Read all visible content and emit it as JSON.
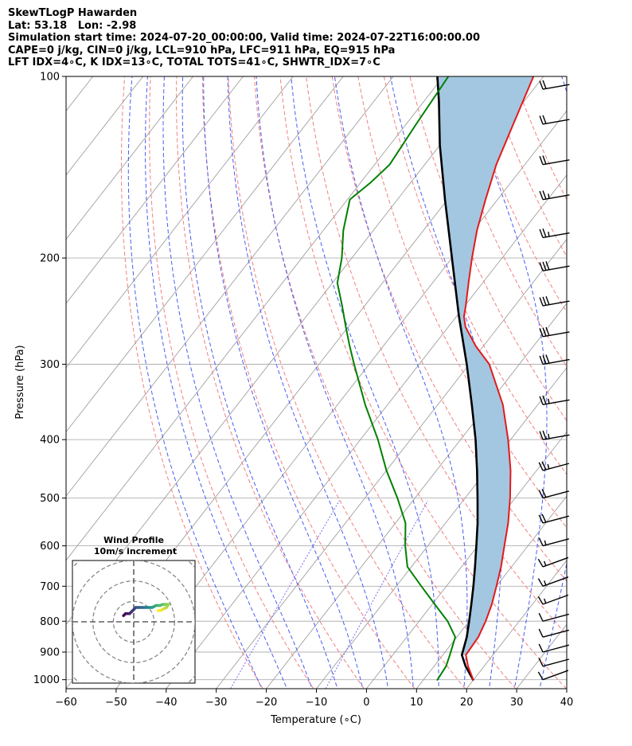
{
  "header": {
    "line1": "SkewTLogP Hawarden",
    "line2": "Lat: 53.18   Lon: -2.98",
    "line3": "Simulation start time: 2024-07-20_00:00:00, Valid time: 2024-07-22T16:00:00.00",
    "line4": "CAPE=0 j/kg, CIN=0 j/kg, LCL=910 hPa, LFC=911 hPa, EQ=915 hPa",
    "line5": "LFT IDX=4∘C, K IDX=13∘C, TOTAL TOTS=41∘C, SHWTR_IDX=7∘C"
  },
  "colors": {
    "temperature": "#e41a1c",
    "dewpoint": "#008000",
    "parcel": "#000000",
    "cape_fill": "#a3c7e0",
    "dry_adiabat": "#f08080",
    "moist_adiabat": "#4a5cf0",
    "mixing_ratio": "#7b68ee",
    "isotherm": "#a0a0a0",
    "isobar": "#b0b0b0"
  },
  "chart_data": {
    "type": "line",
    "xlabel": "Temperature (∘C)",
    "ylabel": "Pressure (hPa)",
    "xlim": [
      -60,
      40
    ],
    "ylim": [
      1035,
      100
    ],
    "yscale": "log",
    "skew": true,
    "x_ticks": [
      "−60",
      "−50",
      "−40",
      "−30",
      "−20",
      "−10",
      "0",
      "10",
      "20",
      "30",
      "40"
    ],
    "y_ticks": [
      "100",
      "200",
      "300",
      "400",
      "500",
      "600",
      "700",
      "800",
      "900",
      "1000"
    ],
    "grid": true,
    "series": [
      {
        "role": "temperature",
        "points": [
          [
            1003,
            20.1
          ],
          [
            950,
            16.8
          ],
          [
            910,
            14.6
          ],
          [
            850,
            14.3
          ],
          [
            800,
            13.3
          ],
          [
            750,
            11.9
          ],
          [
            700,
            10.0
          ],
          [
            650,
            7.9
          ],
          [
            600,
            5.3
          ],
          [
            550,
            2.5
          ],
          [
            500,
            -1.0
          ],
          [
            450,
            -5.2
          ],
          [
            400,
            -10.5
          ],
          [
            350,
            -17.0
          ],
          [
            300,
            -26.0
          ],
          [
            280,
            -31.5
          ],
          [
            260,
            -36.6
          ],
          [
            250,
            -38.5
          ],
          [
            240,
            -39.8
          ],
          [
            220,
            -42.8
          ],
          [
            200,
            -46.0
          ],
          [
            180,
            -49.3
          ],
          [
            160,
            -52.4
          ],
          [
            140,
            -55.7
          ],
          [
            120,
            -58.6
          ],
          [
            100,
            -62.0
          ]
        ]
      },
      {
        "role": "dewpoint",
        "points": [
          [
            1003,
            12.8
          ],
          [
            950,
            12.4
          ],
          [
            910,
            11.4
          ],
          [
            850,
            9.7
          ],
          [
            800,
            5.7
          ],
          [
            750,
            0.5
          ],
          [
            700,
            -5.0
          ],
          [
            650,
            -10.8
          ],
          [
            600,
            -14.5
          ],
          [
            550,
            -18.0
          ],
          [
            500,
            -23.5
          ],
          [
            450,
            -30.0
          ],
          [
            400,
            -36.5
          ],
          [
            350,
            -44.5
          ],
          [
            300,
            -53.0
          ],
          [
            280,
            -56.7
          ],
          [
            260,
            -60.5
          ],
          [
            240,
            -64.5
          ],
          [
            220,
            -69.0
          ],
          [
            200,
            -72.0
          ],
          [
            180,
            -76.0
          ],
          [
            160,
            -79.5
          ],
          [
            150,
            -78.0
          ],
          [
            140,
            -77.0
          ],
          [
            120,
            -78.0
          ],
          [
            100,
            -79.0
          ]
        ]
      },
      {
        "role": "parcel",
        "points": [
          [
            1003,
            20.1
          ],
          [
            950,
            16.3
          ],
          [
            910,
            13.8
          ],
          [
            850,
            12.0
          ],
          [
            800,
            10.0
          ],
          [
            750,
            7.8
          ],
          [
            700,
            5.4
          ],
          [
            650,
            2.7
          ],
          [
            600,
            -0.3
          ],
          [
            550,
            -3.6
          ],
          [
            500,
            -7.5
          ],
          [
            450,
            -11.9
          ],
          [
            400,
            -17.0
          ],
          [
            350,
            -23.2
          ],
          [
            300,
            -30.5
          ],
          [
            250,
            -39.5
          ],
          [
            200,
            -50.0
          ],
          [
            160,
            -60.5
          ],
          [
            130,
            -70.0
          ],
          [
            110,
            -77.0
          ],
          [
            100,
            -81.2
          ]
        ]
      }
    ],
    "dry_adiabats_theta_K": [
      250,
      260,
      270,
      280,
      290,
      300,
      310,
      320,
      330,
      340,
      350,
      360,
      370,
      380,
      390,
      400,
      420,
      440,
      460
    ],
    "moist_adiabats_start_C": [
      -20,
      -15,
      -10,
      -5,
      0,
      5,
      10,
      15,
      20,
      25,
      30,
      35
    ],
    "mixing_ratio_lines_gkg": [
      0.4,
      2
    ],
    "wind_barbs": [
      {
        "p": 1000,
        "spd_kt": 10,
        "dir": 250
      },
      {
        "p": 950,
        "spd_kt": 10,
        "dir": 255
      },
      {
        "p": 900,
        "spd_kt": 10,
        "dir": 255
      },
      {
        "p": 850,
        "spd_kt": 10,
        "dir": 255
      },
      {
        "p": 800,
        "spd_kt": 10,
        "dir": 255
      },
      {
        "p": 750,
        "spd_kt": 15,
        "dir": 250
      },
      {
        "p": 700,
        "spd_kt": 15,
        "dir": 250
      },
      {
        "p": 650,
        "spd_kt": 15,
        "dir": 250
      },
      {
        "p": 600,
        "spd_kt": 15,
        "dir": 255
      },
      {
        "p": 550,
        "spd_kt": 20,
        "dir": 255
      },
      {
        "p": 500,
        "spd_kt": 20,
        "dir": 255
      },
      {
        "p": 450,
        "spd_kt": 25,
        "dir": 255
      },
      {
        "p": 400,
        "spd_kt": 25,
        "dir": 260
      },
      {
        "p": 350,
        "spd_kt": 25,
        "dir": 260
      },
      {
        "p": 300,
        "spd_kt": 30,
        "dir": 260
      },
      {
        "p": 270,
        "spd_kt": 30,
        "dir": 260
      },
      {
        "p": 240,
        "spd_kt": 30,
        "dir": 260
      },
      {
        "p": 210,
        "spd_kt": 30,
        "dir": 260
      },
      {
        "p": 185,
        "spd_kt": 25,
        "dir": 260
      },
      {
        "p": 160,
        "spd_kt": 25,
        "dir": 260
      },
      {
        "p": 140,
        "spd_kt": 20,
        "dir": 260
      },
      {
        "p": 120,
        "spd_kt": 20,
        "dir": 260
      },
      {
        "p": 105,
        "spd_kt": 20,
        "dir": 260
      }
    ],
    "hodograph": {
      "title_line1": "Wind Profile",
      "title_line2": "10m/s increment",
      "ring_step_ms": 10,
      "range_ms": 30,
      "points_uv": [
        [
          -5,
          3
        ],
        [
          -4,
          4
        ],
        [
          -3,
          4
        ],
        [
          -2,
          4
        ],
        [
          -1,
          5
        ],
        [
          0,
          6
        ],
        [
          1,
          7
        ],
        [
          2,
          7
        ],
        [
          3,
          7
        ],
        [
          4,
          7
        ],
        [
          5,
          7
        ],
        [
          6,
          7
        ],
        [
          7,
          7
        ],
        [
          8,
          7
        ],
        [
          9,
          7
        ],
        [
          10,
          7.5
        ],
        [
          11,
          8
        ],
        [
          12,
          8
        ],
        [
          13,
          8
        ],
        [
          14,
          8.5
        ],
        [
          15,
          8.5
        ],
        [
          16,
          8.5
        ],
        [
          17,
          8.5
        ],
        [
          16,
          7
        ],
        [
          15,
          6.5
        ],
        [
          14,
          6
        ],
        [
          13,
          5.5
        ],
        [
          12,
          5.5
        ]
      ]
    }
  }
}
